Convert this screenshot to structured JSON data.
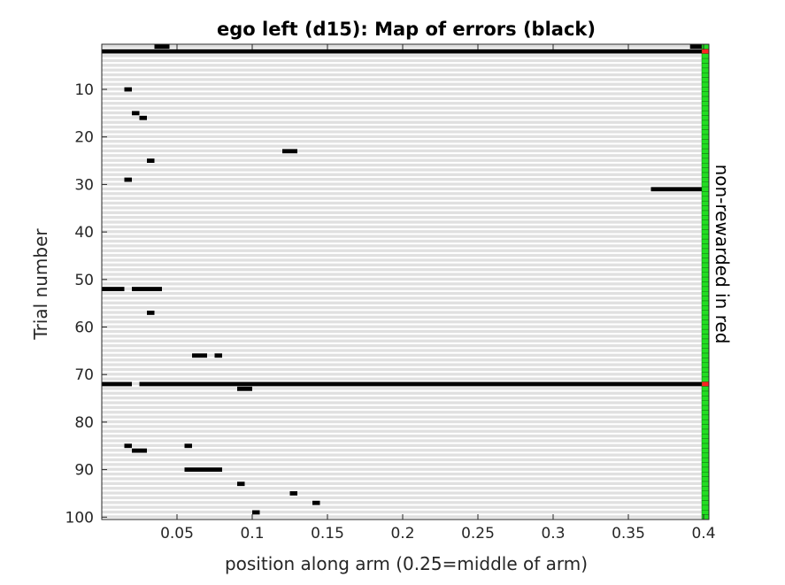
{
  "chart_data": {
    "type": "heatmap",
    "title": "ego left (d15): Map of errors (black)",
    "xlabel": "position along arm (0.25=middle of arm)",
    "ylabel": "Trial number",
    "side_label": "non-rewarded in red",
    "xlim": [
      0,
      0.4
    ],
    "ylim": [
      1,
      100
    ],
    "xticks": [
      0.05,
      0.1,
      0.15,
      0.2,
      0.25,
      0.3,
      0.35,
      0.4
    ],
    "xtick_labels": [
      "0.05",
      "0.1",
      "0.15",
      "0.2",
      "0.25",
      "0.3",
      "0.35",
      "0.4"
    ],
    "yticks": [
      10,
      20,
      30,
      40,
      50,
      60,
      70,
      80,
      90,
      100
    ],
    "ytick_labels": [
      "10",
      "20",
      "30",
      "40",
      "50",
      "60",
      "70",
      "80",
      "90",
      "100"
    ],
    "errors": [
      {
        "trial": 1,
        "x_start": 0.035,
        "x_end": 0.045
      },
      {
        "trial": 1,
        "x_start": 0.391,
        "x_end": 0.4
      },
      {
        "trial": 2,
        "x_start": 0.0,
        "x_end": 0.4
      },
      {
        "trial": 10,
        "x_start": 0.015,
        "x_end": 0.02
      },
      {
        "trial": 15,
        "x_start": 0.02,
        "x_end": 0.025
      },
      {
        "trial": 16,
        "x_start": 0.025,
        "x_end": 0.03
      },
      {
        "trial": 23,
        "x_start": 0.12,
        "x_end": 0.13
      },
      {
        "trial": 25,
        "x_start": 0.03,
        "x_end": 0.035
      },
      {
        "trial": 29,
        "x_start": 0.015,
        "x_end": 0.02
      },
      {
        "trial": 31,
        "x_start": 0.365,
        "x_end": 0.4
      },
      {
        "trial": 52,
        "x_start": 0.0,
        "x_end": 0.015
      },
      {
        "trial": 52,
        "x_start": 0.02,
        "x_end": 0.04
      },
      {
        "trial": 57,
        "x_start": 0.03,
        "x_end": 0.035
      },
      {
        "trial": 66,
        "x_start": 0.06,
        "x_end": 0.07
      },
      {
        "trial": 66,
        "x_start": 0.075,
        "x_end": 0.08
      },
      {
        "trial": 72,
        "x_start": 0.0,
        "x_end": 0.02
      },
      {
        "trial": 72,
        "x_start": 0.025,
        "x_end": 0.4
      },
      {
        "trial": 73,
        "x_start": 0.09,
        "x_end": 0.1
      },
      {
        "trial": 85,
        "x_start": 0.015,
        "x_end": 0.02
      },
      {
        "trial": 85,
        "x_start": 0.055,
        "x_end": 0.06
      },
      {
        "trial": 86,
        "x_start": 0.02,
        "x_end": 0.03
      },
      {
        "trial": 90,
        "x_start": 0.055,
        "x_end": 0.08
      },
      {
        "trial": 93,
        "x_start": 0.09,
        "x_end": 0.095
      },
      {
        "trial": 95,
        "x_start": 0.125,
        "x_end": 0.13
      },
      {
        "trial": 97,
        "x_start": 0.14,
        "x_end": 0.145
      },
      {
        "trial": 99,
        "x_start": 0.1,
        "x_end": 0.105
      }
    ],
    "non_rewarded_trials": [
      2,
      72
    ],
    "colors": {
      "error": "#000000",
      "stripe": "#e0e0e0",
      "rewarded": "#22dd22",
      "non_rewarded": "#ff2222",
      "axis": "#262626"
    }
  }
}
